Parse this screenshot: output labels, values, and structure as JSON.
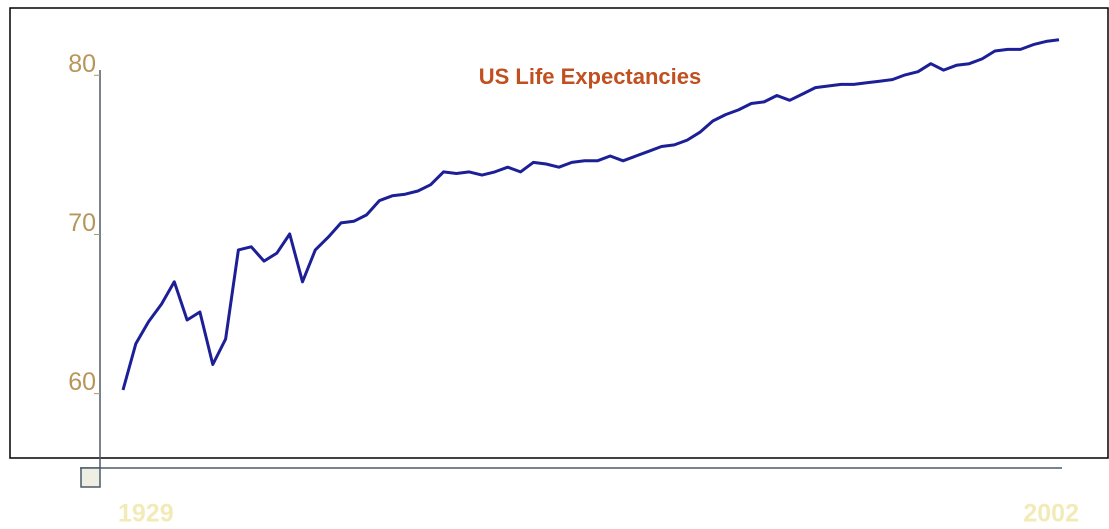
{
  "chart_data": {
    "type": "line",
    "title": "US Life Expectancies",
    "x": [
      1929,
      1930,
      1931,
      1932,
      1933,
      1934,
      1935,
      1936,
      1937,
      1938,
      1939,
      1940,
      1941,
      1942,
      1943,
      1944,
      1945,
      1946,
      1947,
      1948,
      1949,
      1950,
      1951,
      1952,
      1953,
      1954,
      1955,
      1956,
      1957,
      1958,
      1959,
      1960,
      1961,
      1962,
      1963,
      1964,
      1965,
      1966,
      1967,
      1968,
      1969,
      1970,
      1971,
      1972,
      1973,
      1974,
      1975,
      1976,
      1977,
      1978,
      1979,
      1980,
      1981,
      1982,
      1983,
      1984,
      1985,
      1986,
      1987,
      1988,
      1989,
      1990,
      1991,
      1992,
      1993,
      1994,
      1995,
      1996,
      1997,
      1998,
      1999,
      2000,
      2001,
      2002
    ],
    "series": [
      {
        "name": "US Life Expectancies",
        "color": "#1c1f96",
        "values": [
          59.6,
          62.5,
          63.9,
          65.0,
          66.4,
          64.0,
          64.5,
          61.2,
          62.8,
          68.4,
          68.6,
          67.7,
          68.2,
          69.4,
          66.4,
          68.4,
          69.2,
          70.1,
          70.2,
          70.6,
          71.5,
          71.8,
          71.9,
          72.1,
          72.5,
          73.3,
          73.2,
          73.3,
          73.1,
          73.3,
          73.6,
          73.3,
          73.9,
          73.8,
          73.6,
          73.9,
          74.0,
          74.0,
          74.3,
          74.0,
          74.3,
          74.6,
          74.9,
          75.0,
          75.3,
          75.8,
          76.5,
          76.9,
          77.2,
          77.6,
          77.7,
          78.1,
          77.8,
          78.2,
          78.6,
          78.7,
          78.8,
          78.8,
          78.9,
          79.0,
          79.1,
          79.4,
          79.6,
          80.1,
          79.7,
          80.0,
          80.1,
          80.4,
          80.9,
          81.0,
          81.0,
          81.3,
          81.5,
          81.6
        ]
      }
    ],
    "xlim": [
      1929,
      2002
    ],
    "xticks": [
      1929,
      2002
    ],
    "ylim": [
      54.7,
      83.6
    ],
    "yticks": [
      60,
      70,
      80
    ]
  }
}
